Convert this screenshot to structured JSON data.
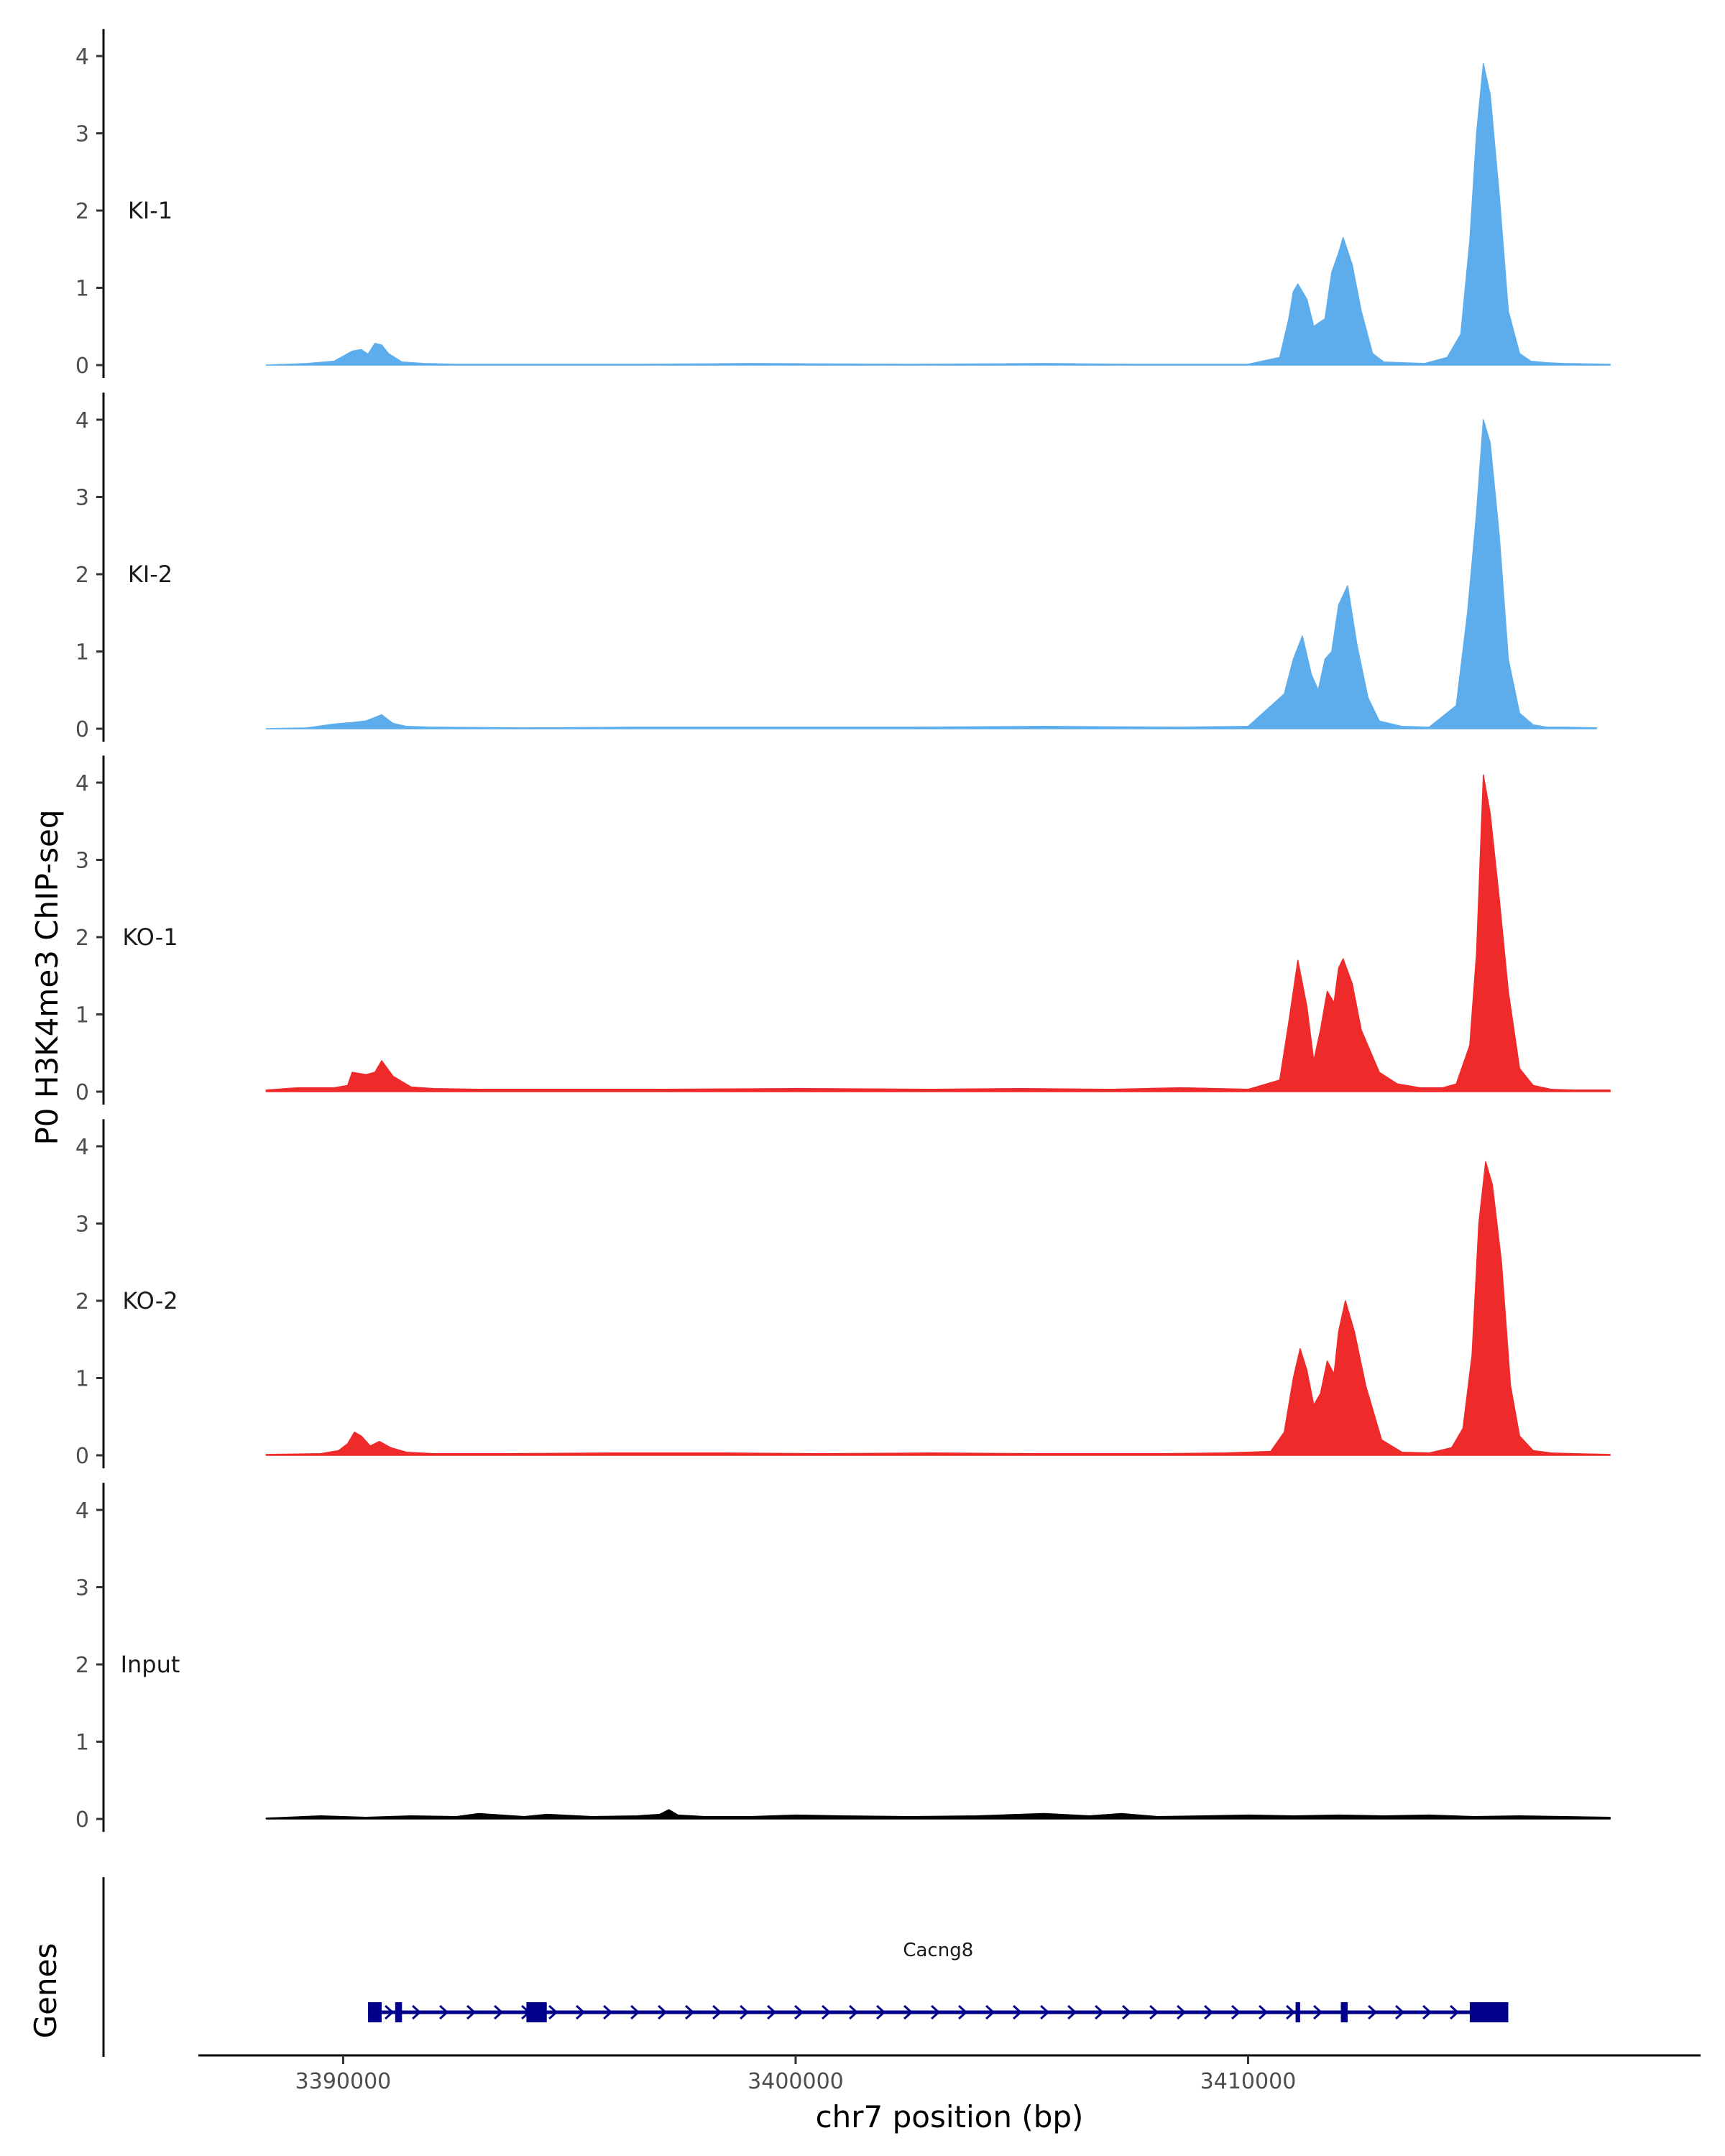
{
  "chart_data": {
    "type": "area",
    "ylabel": "P0 H3K4me3 ChIP-seq",
    "xlabel": "chr7 position (bp)",
    "xlim": [
      3386800,
      3420000
    ],
    "ylim": [
      0,
      4.3
    ],
    "y_ticks": [
      0,
      1,
      2,
      3,
      4
    ],
    "x_ticks": [
      3390000,
      3400000,
      3410000
    ],
    "x_tick_labels": [
      "3390000",
      "3400000",
      "3410000"
    ],
    "colors": {
      "KI": "#5DADEC",
      "KO": "#EE2A2A",
      "Input": "#000000",
      "gene": "#00008B",
      "axis": "#000000"
    },
    "tracks": [
      {
        "name": "KI-1",
        "color": "#5DADEC",
        "x": [
          3388300,
          3389200,
          3389800,
          3390200,
          3390400,
          3390550,
          3390700,
          3390850,
          3391000,
          3391300,
          3391800,
          3392500,
          3396500,
          3399000,
          3402500,
          3405500,
          3407500,
          3410000,
          3410700,
          3410900,
          3411000,
          3411100,
          3411300,
          3411450,
          3411700,
          3411850,
          3412000,
          3412100,
          3412300,
          3412500,
          3412750,
          3413000,
          3413400,
          3413900,
          3414400,
          3414700,
          3414900,
          3415050,
          3415200,
          3415350,
          3415550,
          3415750,
          3416000,
          3416250,
          3416600,
          3417000,
          3418000
        ],
        "y": [
          0,
          0.02,
          0.05,
          0.18,
          0.2,
          0.14,
          0.28,
          0.26,
          0.15,
          0.04,
          0.02,
          0.01,
          0.01,
          0.02,
          0.01,
          0.02,
          0.01,
          0.01,
          0.1,
          0.6,
          0.95,
          1.05,
          0.85,
          0.5,
          0.6,
          1.2,
          1.45,
          1.65,
          1.3,
          0.7,
          0.15,
          0.04,
          0.03,
          0.02,
          0.1,
          0.4,
          1.6,
          3.0,
          3.9,
          3.5,
          2.2,
          0.7,
          0.15,
          0.05,
          0.03,
          0.02,
          0.01
        ]
      },
      {
        "name": "KI-2",
        "color": "#5DADEC",
        "x": [
          3388300,
          3389200,
          3389800,
          3390200,
          3390500,
          3390850,
          3391100,
          3391400,
          3392000,
          3394000,
          3396500,
          3399000,
          3402500,
          3405500,
          3408500,
          3410000,
          3410800,
          3411000,
          3411200,
          3411400,
          3411550,
          3411700,
          3411850,
          3412000,
          3412200,
          3412400,
          3412650,
          3412900,
          3413400,
          3414000,
          3414600,
          3414850,
          3415050,
          3415200,
          3415350,
          3415550,
          3415750,
          3416000,
          3416300,
          3416600,
          3417000,
          3417700
        ],
        "y": [
          0,
          0.01,
          0.06,
          0.08,
          0.1,
          0.18,
          0.07,
          0.03,
          0.02,
          0.01,
          0.02,
          0.02,
          0.02,
          0.03,
          0.02,
          0.03,
          0.45,
          0.9,
          1.2,
          0.7,
          0.5,
          0.9,
          1.0,
          1.6,
          1.85,
          1.1,
          0.4,
          0.1,
          0.03,
          0.02,
          0.3,
          1.5,
          2.8,
          4.0,
          3.7,
          2.5,
          0.9,
          0.2,
          0.05,
          0.02,
          0.02,
          0.01
        ]
      },
      {
        "name": "KO-1",
        "color": "#EE2A2A",
        "x": [
          3388300,
          3389000,
          3389800,
          3390100,
          3390200,
          3390500,
          3390700,
          3390850,
          3391100,
          3391500,
          3392000,
          3393000,
          3395000,
          3397000,
          3400000,
          3403000,
          3405000,
          3407000,
          3408500,
          3410000,
          3410700,
          3410900,
          3411100,
          3411300,
          3411450,
          3411600,
          3411750,
          3411900,
          3412000,
          3412100,
          3412300,
          3412500,
          3412900,
          3413300,
          3413800,
          3414300,
          3414600,
          3414900,
          3415050,
          3415200,
          3415350,
          3415550,
          3415750,
          3416000,
          3416300,
          3416700,
          3417200,
          3418000
        ],
        "y": [
          0.02,
          0.05,
          0.05,
          0.08,
          0.25,
          0.22,
          0.25,
          0.4,
          0.2,
          0.06,
          0.04,
          0.03,
          0.03,
          0.03,
          0.04,
          0.03,
          0.04,
          0.03,
          0.05,
          0.03,
          0.15,
          0.9,
          1.7,
          1.1,
          0.4,
          0.8,
          1.3,
          1.15,
          1.6,
          1.72,
          1.4,
          0.8,
          0.25,
          0.1,
          0.05,
          0.05,
          0.1,
          0.6,
          1.8,
          4.1,
          3.6,
          2.5,
          1.3,
          0.3,
          0.08,
          0.03,
          0.02,
          0.02
        ]
      },
      {
        "name": "KO-2",
        "color": "#EE2A2A",
        "x": [
          3388300,
          3389500,
          3389900,
          3390100,
          3390250,
          3390400,
          3390600,
          3390800,
          3391050,
          3391400,
          3392000,
          3393500,
          3396000,
          3398500,
          3400500,
          3403000,
          3405500,
          3408000,
          3409500,
          3410500,
          3410800,
          3411000,
          3411150,
          3411300,
          3411450,
          3411600,
          3411750,
          3411900,
          3412000,
          3412150,
          3412350,
          3412600,
          3412950,
          3413400,
          3414000,
          3414500,
          3414750,
          3414950,
          3415100,
          3415250,
          3415400,
          3415600,
          3415800,
          3416000,
          3416300,
          3416700,
          3417200,
          3418000
        ],
        "y": [
          0.01,
          0.02,
          0.06,
          0.15,
          0.3,
          0.25,
          0.12,
          0.18,
          0.1,
          0.04,
          0.02,
          0.02,
          0.03,
          0.03,
          0.02,
          0.03,
          0.02,
          0.02,
          0.03,
          0.05,
          0.3,
          1.0,
          1.38,
          1.1,
          0.65,
          0.8,
          1.22,
          1.05,
          1.6,
          2.0,
          1.6,
          0.9,
          0.2,
          0.04,
          0.03,
          0.1,
          0.35,
          1.3,
          3.0,
          3.8,
          3.5,
          2.5,
          0.9,
          0.25,
          0.06,
          0.03,
          0.02,
          0.01
        ]
      },
      {
        "name": "Input",
        "color": "#000000",
        "x": [
          3388300,
          3389500,
          3390500,
          3391500,
          3392500,
          3393000,
          3394000,
          3394500,
          3395500,
          3396500,
          3397000,
          3397200,
          3397400,
          3398000,
          3399000,
          3400000,
          3401000,
          3402500,
          3404000,
          3405500,
          3406500,
          3407200,
          3408000,
          3409000,
          3410000,
          3411000,
          3412000,
          3413000,
          3414000,
          3415000,
          3416000,
          3417000,
          3418000
        ],
        "y": [
          0.01,
          0.04,
          0.02,
          0.04,
          0.03,
          0.07,
          0.03,
          0.06,
          0.03,
          0.04,
          0.06,
          0.12,
          0.05,
          0.03,
          0.03,
          0.05,
          0.04,
          0.03,
          0.04,
          0.07,
          0.04,
          0.07,
          0.03,
          0.04,
          0.05,
          0.04,
          0.05,
          0.04,
          0.05,
          0.03,
          0.04,
          0.03,
          0.02
        ]
      }
    ],
    "genes_label": "Genes",
    "gene": {
      "name": "Cacng8",
      "start": 3390550,
      "end": 3415750,
      "strand": "+",
      "exons": [
        [
          3390550,
          3390850
        ],
        [
          3391150,
          3391300
        ],
        [
          3394050,
          3394500
        ],
        [
          3411050,
          3411150
        ],
        [
          3412050,
          3412200
        ],
        [
          3414900,
          3415750
        ]
      ]
    }
  }
}
